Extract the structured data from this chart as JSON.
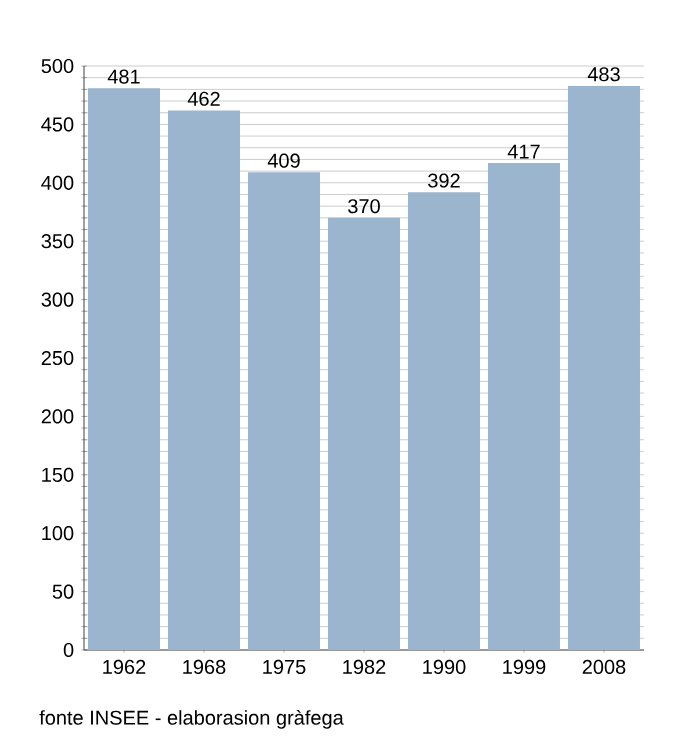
{
  "chart_data": {
    "type": "bar",
    "categories": [
      "1962",
      "1968",
      "1975",
      "1982",
      "1990",
      "1999",
      "2008"
    ],
    "values": [
      481,
      462,
      409,
      370,
      392,
      417,
      483
    ],
    "color": "#9bb5cf",
    "ylim": [
      0,
      500
    ],
    "yticks": [
      0,
      {
        "value": 10,
        "label": null
      },
      {
        "value": 20,
        "label": null
      },
      {
        "value": 30,
        "label": null
      },
      {
        "value": 40,
        "label": null
      },
      50,
      {
        "value": 60,
        "label": null
      },
      {
        "value": 70,
        "label": null
      },
      {
        "value": 80,
        "label": null
      },
      {
        "value": 90,
        "label": null
      },
      100,
      {
        "value": 110,
        "label": null
      },
      {
        "value": 120,
        "label": null
      },
      {
        "value": 130,
        "label": null
      },
      {
        "value": 140,
        "label": null
      },
      150,
      {
        "value": 160,
        "label": null
      },
      {
        "value": 170,
        "label": null
      },
      {
        "value": 180,
        "label": null
      },
      {
        "value": 190,
        "label": null
      },
      200,
      {
        "value": 210,
        "label": null
      },
      {
        "value": 220,
        "label": null
      },
      {
        "value": 230,
        "label": null
      },
      {
        "value": 240,
        "label": null
      },
      250,
      {
        "value": 260,
        "label": null
      },
      {
        "value": 270,
        "label": null
      },
      {
        "value": 280,
        "label": null
      },
      {
        "value": 290,
        "label": null
      },
      300,
      {
        "value": 310,
        "label": null
      },
      {
        "value": 320,
        "label": null
      },
      {
        "value": 330,
        "label": null
      },
      {
        "value": 340,
        "label": null
      },
      350,
      {
        "value": 360,
        "label": null
      },
      {
        "value": 370,
        "label": null
      },
      {
        "value": 380,
        "label": null
      },
      {
        "value": 390,
        "label": null
      },
      400,
      {
        "value": 410,
        "label": null
      },
      {
        "value": 420,
        "label": null
      },
      {
        "value": 430,
        "label": null
      },
      {
        "value": 440,
        "label": null
      },
      450,
      {
        "value": 460,
        "label": null
      },
      {
        "value": 470,
        "label": null
      },
      {
        "value": 480,
        "label": null
      },
      {
        "value": 490,
        "label": null
      },
      500
    ],
    "grid": "y",
    "data_labels": true,
    "annotations": [
      "fonte INSEE - elaborasion gràfega"
    ]
  }
}
